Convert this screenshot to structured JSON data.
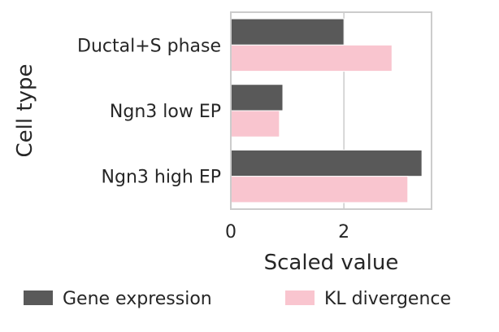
{
  "chart_data": {
    "type": "bar",
    "orientation": "horizontal",
    "categories": [
      "Ductal+S phase",
      "Ngn3 low EP",
      "Ngn3 high EP"
    ],
    "series": [
      {
        "name": "Gene expression",
        "values": [
          2.0,
          0.92,
          3.38
        ],
        "color": "#595959"
      },
      {
        "name": "KL divergence",
        "values": [
          2.85,
          0.86,
          3.13
        ],
        "color": "#f9c5cf"
      }
    ],
    "xlabel": "Scaled value",
    "ylabel": "Cell type",
    "xlim": [
      0,
      3.55
    ],
    "xticks": [
      0,
      2
    ],
    "grid": "vertical",
    "legend_position": "bottom"
  }
}
